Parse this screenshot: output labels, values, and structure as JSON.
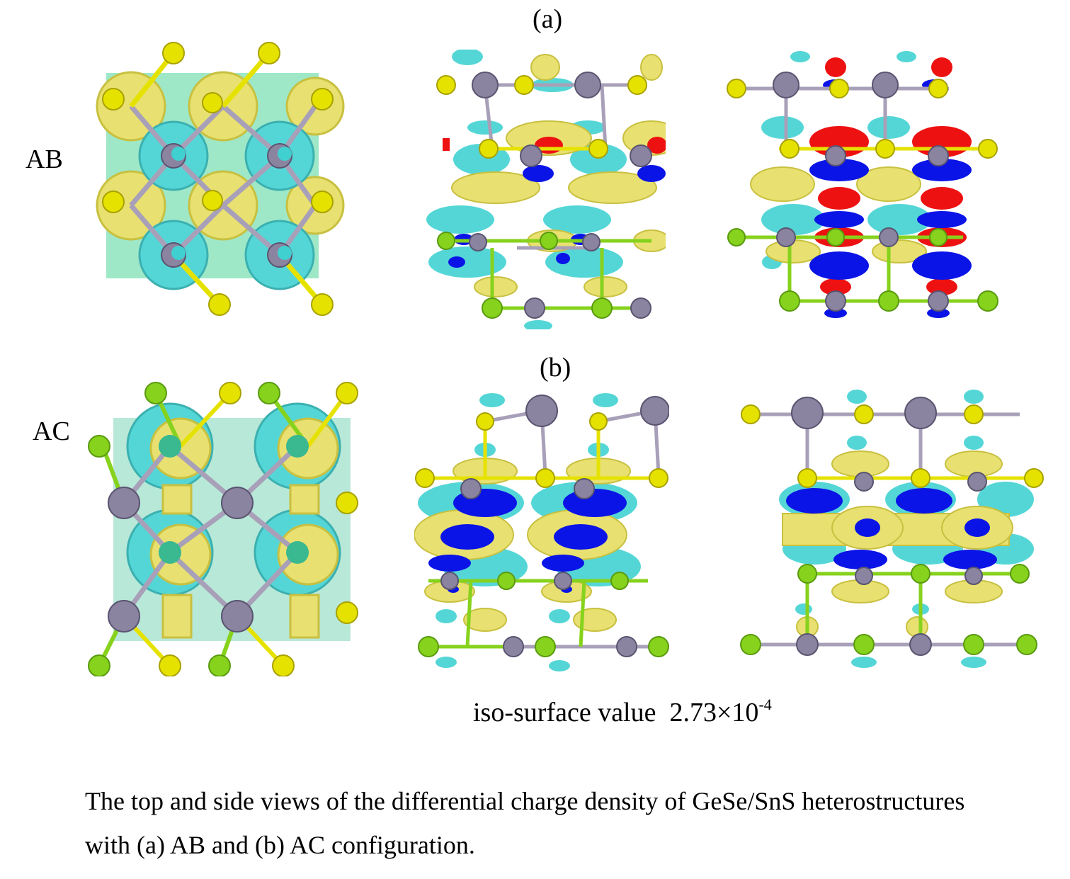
{
  "figure": {
    "panel_a_label": "(a)",
    "panel_b_label": "(b)",
    "row_a_label": "AB",
    "row_b_label": "AC",
    "iso_label": "iso-surface value",
    "iso_base": "2.73×10",
    "iso_exponent": "-4"
  },
  "caption": {
    "line1": "The top and side views of the differential charge density of GeSe/SnS heterostructures",
    "line2": "with (a) AB and (b) AC configuration."
  },
  "colors": {
    "charge_accumulation": "#e8e070",
    "charge_depletion": "#55d6d6",
    "strong_accumulation": "#ee1111",
    "strong_depletion": "#0a14e6",
    "metal_atom": "#8a84a0",
    "chalcogen_a": "#e6e200",
    "chalcogen_b": "#86d21c"
  }
}
